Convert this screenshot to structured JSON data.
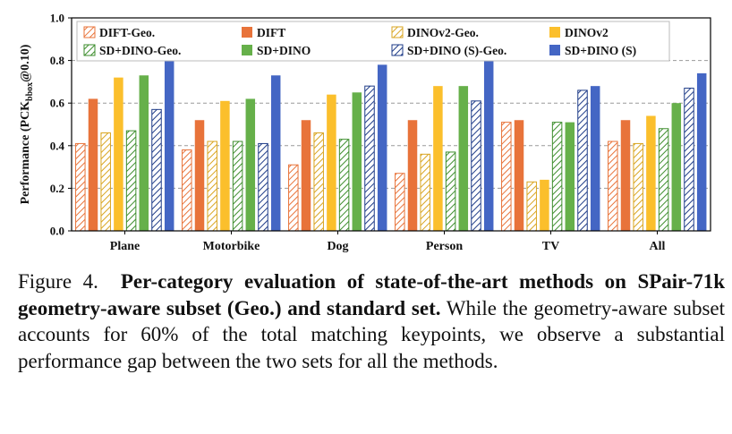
{
  "chart_data": {
    "type": "bar",
    "ylabel": "Performance (PCK",
    "ylabel_sub": "bbox",
    "ylabel_tail": "@0.10)",
    "ylim": [
      0,
      1.0
    ],
    "yticks": [
      "0.0",
      "0.2",
      "0.4",
      "0.6",
      "0.8",
      "1.0"
    ],
    "grid": true,
    "legend_position": "top",
    "categories": [
      "Plane",
      "Motorbike",
      "Dog",
      "Person",
      "TV",
      "All"
    ],
    "series": [
      {
        "name": "DIFT-Geo.",
        "color": "#E8733A",
        "hatched": true,
        "values": [
          0.41,
          0.38,
          0.31,
          0.27,
          0.51,
          0.42
        ]
      },
      {
        "name": "DIFT",
        "color": "#E8733A",
        "hatched": false,
        "values": [
          0.62,
          0.52,
          0.52,
          0.52,
          0.52,
          0.52
        ]
      },
      {
        "name": "DINOv2-Geo.",
        "color": "#D9A521",
        "hatched": true,
        "values": [
          0.46,
          0.42,
          0.46,
          0.36,
          0.23,
          0.41
        ]
      },
      {
        "name": "DINOv2",
        "color": "#FBBF2C",
        "hatched": false,
        "values": [
          0.72,
          0.61,
          0.64,
          0.68,
          0.24,
          0.54
        ]
      },
      {
        "name": "SD+DINO-Geo.",
        "color": "#3E8E2E",
        "hatched": true,
        "values": [
          0.47,
          0.42,
          0.43,
          0.37,
          0.51,
          0.48
        ]
      },
      {
        "name": "SD+DINO",
        "color": "#66B04A",
        "hatched": false,
        "values": [
          0.73,
          0.62,
          0.65,
          0.68,
          0.51,
          0.6
        ]
      },
      {
        "name": "SD+DINO (S)-Geo.",
        "color": "#1F3C88",
        "hatched": true,
        "values": [
          0.57,
          0.41,
          0.68,
          0.61,
          0.66,
          0.67
        ]
      },
      {
        "name": "SD+DINO (S)",
        "color": "#4466C4",
        "hatched": false,
        "values": [
          0.8,
          0.73,
          0.78,
          0.8,
          0.68,
          0.74
        ]
      }
    ]
  },
  "caption": {
    "prefix": "Figure 4.",
    "bold": "Per-category evaluation of state-of-the-art methods on SPair-71k geometry-aware subset (Geo.) and standard set.",
    "rest": "While the geometry-aware subset accounts for 60% of the total matching keypoints, we observe a substantial performance gap between the two sets for all the methods."
  }
}
